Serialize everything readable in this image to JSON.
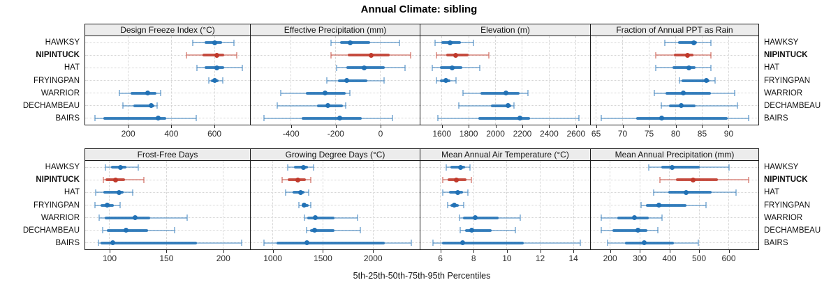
{
  "title": "Annual Climate: sibling",
  "caption": "5th-25th-50th-75th-95th Percentiles",
  "chart_data": {
    "type": "dotplot-percentile-trellis",
    "layout": {
      "rows": 2,
      "cols": 4,
      "grid": true,
      "percentile_order": [
        "p5",
        "p25",
        "p50",
        "p75",
        "p95"
      ]
    },
    "sites": [
      "HAWKSY",
      "NIPINTUCK",
      "HAT",
      "FRYINGPAN",
      "WARRIOR",
      "DECHAMBEAU",
      "BAIRS"
    ],
    "highlight_site": "NIPINTUCK",
    "colors": {
      "series": "#2171b5",
      "highlight": "#c0392b",
      "strip_bg": "#ececec"
    },
    "panels": [
      {
        "title": "Design Freeze Index (°C)",
        "xlim": [
          0,
          765
        ],
        "ticks": [
          200,
          400,
          600
        ],
        "values": [
          [
            500,
            555,
            600,
            635,
            690
          ],
          [
            470,
            545,
            610,
            645,
            705
          ],
          [
            520,
            555,
            610,
            645,
            730
          ],
          [
            575,
            585,
            600,
            620,
            640
          ],
          [
            160,
            212,
            290,
            332,
            350
          ],
          [
            175,
            225,
            305,
            320,
            335
          ],
          [
            45,
            85,
            338,
            377,
            515
          ]
        ]
      },
      {
        "title": "Effective Precipitation (mm)",
        "xlim": [
          -580,
          175
        ],
        "ticks": [
          -400,
          -200,
          0
        ],
        "values": [
          [
            -220,
            -180,
            -135,
            -45,
            85
          ],
          [
            -222,
            -145,
            -42,
            40,
            135
          ],
          [
            -195,
            -153,
            -73,
            18,
            108
          ],
          [
            -240,
            -190,
            -151,
            -60,
            15
          ],
          [
            -445,
            -335,
            -247,
            -155,
            -138
          ],
          [
            -460,
            -283,
            -236,
            -169,
            -156
          ],
          [
            -520,
            -352,
            -182,
            -83,
            52
          ]
        ]
      },
      {
        "title": "Elevation (m)",
        "xlim": [
          1440,
          2705
        ],
        "ticks": [
          1600,
          1800,
          2000,
          2200,
          2400,
          2600
        ],
        "values": [
          [
            1550,
            1595,
            1660,
            1740,
            1835
          ],
          [
            1560,
            1635,
            1705,
            1800,
            1950
          ],
          [
            1530,
            1585,
            1675,
            1755,
            1880
          ],
          [
            1560,
            1585,
            1630,
            1665,
            1705
          ],
          [
            1760,
            1890,
            2080,
            2180,
            2240
          ],
          [
            1725,
            1965,
            2095,
            2115,
            2140
          ],
          [
            1570,
            1870,
            2180,
            2255,
            2620
          ]
        ]
      },
      {
        "title": "Fraction of Annual PPT as Rain",
        "xlim": [
          64,
          95.6
        ],
        "ticks": [
          65,
          70,
          75,
          80,
          85,
          90
        ],
        "values": [
          [
            78,
            80.5,
            83.4,
            84,
            86.7
          ],
          [
            76.3,
            79.7,
            82.3,
            83.3,
            86.7
          ],
          [
            76.3,
            79.4,
            82.5,
            83.7,
            86.7
          ],
          [
            80.7,
            81.1,
            85.8,
            86.4,
            87.5
          ],
          [
            76,
            78.1,
            81.4,
            86.6,
            91.1
          ],
          [
            77.3,
            78.8,
            81,
            83.8,
            91.6
          ],
          [
            66,
            72.6,
            77.3,
            89.8,
            93.8
          ]
        ]
      },
      {
        "title": "Frost-Free Days",
        "xlim": [
          78.5,
          223.5
        ],
        "ticks": [
          100,
          150,
          200
        ],
        "values": [
          [
            96.5,
            101.5,
            109.5,
            114.5,
            125
          ],
          [
            94.5,
            96.5,
            105.5,
            113.5,
            130
          ],
          [
            88,
            94.5,
            108,
            112,
            120.5
          ],
          [
            87,
            92,
            98,
            103.5,
            109
          ],
          [
            91,
            95.5,
            122.5,
            135.5,
            168
          ],
          [
            94,
            97.5,
            114.5,
            133.5,
            157
          ],
          [
            90,
            92,
            103,
            177,
            216
          ]
        ]
      },
      {
        "title": "Growing Degree Days (°C)",
        "xlim": [
          780,
          2465
        ],
        "ticks": [
          1000,
          1500,
          2000
        ],
        "values": [
          [
            1150,
            1215,
            1305,
            1350,
            1405
          ],
          [
            1090,
            1150,
            1250,
            1330,
            1380
          ],
          [
            1130,
            1200,
            1275,
            1315,
            1360
          ],
          [
            1260,
            1285,
            1310,
            1355,
            1380
          ],
          [
            1315,
            1345,
            1425,
            1615,
            1845
          ],
          [
            1335,
            1370,
            1420,
            1615,
            1875
          ],
          [
            910,
            1040,
            1340,
            2115,
            2380
          ]
        ]
      },
      {
        "title": "Mean Annual Air Temperature (°C)",
        "xlim": [
          4.8,
          15
        ],
        "ticks": [
          6,
          8,
          10,
          12,
          14
        ],
        "values": [
          [
            6.35,
            6.6,
            7.2,
            7.5,
            7.8
          ],
          [
            6.15,
            6.45,
            6.95,
            7.55,
            7.85
          ],
          [
            6.15,
            6.5,
            7.05,
            7.35,
            7.65
          ],
          [
            6.45,
            6.6,
            6.85,
            7.1,
            7.4
          ],
          [
            7.15,
            7.35,
            8.1,
            9.5,
            10.8
          ],
          [
            7.2,
            7.5,
            7.9,
            9.1,
            10.5
          ],
          [
            5.55,
            6.1,
            7.35,
            11,
            14.4
          ]
        ]
      },
      {
        "title": "Mean Annual Precipitation (mm)",
        "xlim": [
          135,
          700
        ],
        "ticks": [
          200,
          300,
          400,
          500,
          600
        ],
        "values": [
          [
            330,
            373,
            410,
            503,
            600
          ],
          [
            369,
            423,
            481,
            563,
            667
          ],
          [
            346,
            396,
            457,
            543,
            625
          ],
          [
            305,
            322,
            364,
            458,
            524
          ],
          [
            170,
            225,
            283,
            330,
            375
          ],
          [
            170,
            208,
            294,
            326,
            360
          ],
          [
            192,
            251,
            314,
            415,
            497
          ]
        ]
      }
    ]
  }
}
